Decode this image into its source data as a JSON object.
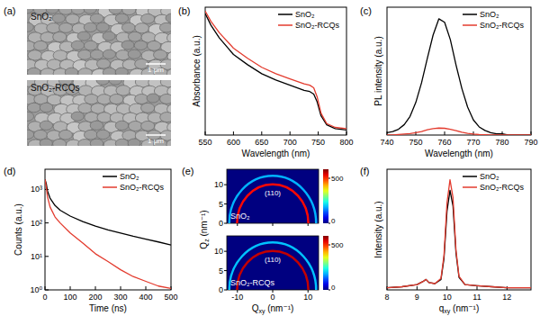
{
  "chart_data": [
    {
      "type": "image",
      "title": "(a)",
      "images": [
        {
          "label": "SnO₂",
          "scale_bar": "1 μm"
        },
        {
          "label": "SnO₂-RCQs",
          "scale_bar": "1 μm"
        }
      ]
    },
    {
      "type": "line",
      "title": "(b)",
      "x_label": "Wavelength (nm)",
      "y_label": "Absorbance (a.u.)",
      "x": [
        550,
        560,
        575,
        600,
        625,
        650,
        675,
        700,
        725,
        735,
        742,
        748,
        755,
        765,
        780,
        800
      ],
      "xlim": [
        550,
        800
      ],
      "xticks": [
        550,
        600,
        650,
        700,
        750,
        800
      ],
      "ylim": [
        0,
        1
      ],
      "tick_labels": "x",
      "legend": "upper right",
      "series": [
        {
          "name": "SnO₂",
          "color": "#000000",
          "values": [
            0.95,
            0.86,
            0.76,
            0.63,
            0.55,
            0.48,
            0.43,
            0.39,
            0.35,
            0.34,
            0.32,
            0.26,
            0.15,
            0.08,
            0.05,
            0.04
          ]
        },
        {
          "name": "SnO₂-RCQs",
          "color": "#e33b2e",
          "values": [
            0.97,
            0.89,
            0.8,
            0.68,
            0.6,
            0.53,
            0.48,
            0.44,
            0.4,
            0.39,
            0.37,
            0.3,
            0.17,
            0.09,
            0.06,
            0.05
          ]
        }
      ]
    },
    {
      "type": "line",
      "title": "(c)",
      "x_label": "Wavelength (nm)",
      "y_label": "PL intensity (a.u.)",
      "x": [
        740,
        742,
        744,
        746,
        748,
        750,
        752,
        754,
        756,
        758,
        760,
        762,
        764,
        766,
        768,
        770,
        772,
        774,
        776,
        778,
        780,
        782,
        784,
        786,
        788,
        790
      ],
      "xlim": [
        740,
        790
      ],
      "xticks": [
        740,
        750,
        760,
        770,
        780,
        790
      ],
      "ylim": [
        0,
        1.1
      ],
      "tick_labels": "x",
      "legend": "upper right",
      "series": [
        {
          "name": "SnO₂",
          "color": "#000000",
          "values": [
            0.02,
            0.03,
            0.05,
            0.09,
            0.16,
            0.28,
            0.45,
            0.66,
            0.86,
            1.0,
            0.97,
            0.82,
            0.6,
            0.4,
            0.24,
            0.13,
            0.07,
            0.04,
            0.02,
            0.01,
            0.01,
            0.0,
            0.0,
            0.0,
            0.0,
            0.0
          ]
        },
        {
          "name": "SnO₂-RCQs",
          "color": "#e33b2e",
          "values": [
            0,
            0,
            0.005,
            0.008,
            0.012,
            0.02,
            0.03,
            0.045,
            0.055,
            0.06,
            0.058,
            0.05,
            0.037,
            0.025,
            0.015,
            0.008,
            0.004,
            0.002,
            0.001,
            0,
            0,
            0,
            0,
            0,
            0,
            0
          ]
        }
      ]
    },
    {
      "type": "line",
      "title": "(d)",
      "x_label": "Time (ns)",
      "y_label": "Counts (a.u.)",
      "x": [
        0,
        5,
        10,
        20,
        40,
        60,
        100,
        150,
        200,
        250,
        300,
        350,
        400,
        450,
        500
      ],
      "xlim": [
        0,
        500
      ],
      "xticks": [
        0,
        100,
        200,
        300,
        400,
        500
      ],
      "ylim": [
        1,
        4000
      ],
      "log": "y",
      "yticks": [
        {
          "value": 1,
          "label": "10⁰"
        },
        {
          "value": 10,
          "label": "10¹"
        },
        {
          "value": 100,
          "label": "10²"
        },
        {
          "value": 1000,
          "label": "10³"
        }
      ],
      "legend": "upper right",
      "series": [
        {
          "name": "SnO₂",
          "color": "#000000",
          "values": [
            2000,
            1500,
            900,
            550,
            330,
            240,
            160,
            110,
            80,
            62,
            50,
            40,
            33,
            27,
            22
          ]
        },
        {
          "name": "SnO₂-RCQs",
          "color": "#e33b2e",
          "values": [
            2000,
            1200,
            600,
            300,
            150,
            100,
            50,
            25,
            12,
            7,
            4,
            2.5,
            1.8,
            1.3,
            1.1
          ]
        }
      ]
    },
    {
      "type": "heatmap",
      "title": "(e)",
      "y_label": "Qz (nm⁻¹)",
      "xlim": [
        -13,
        13
      ],
      "xticks": [
        -10,
        0,
        10
      ],
      "ylim": [
        0,
        14
      ],
      "yticks": [
        0,
        5,
        10
      ],
      "tick_labels": "y",
      "annotations": [
        "SnO₂",
        "(110)"
      ],
      "rings": [
        {
          "q": 10.1,
          "intensity": 520
        },
        {
          "q": 12.3,
          "intensity": 180
        }
      ],
      "colorbar": {
        "range": [
          0,
          600
        ],
        "ticks": [
          0,
          500
        ]
      }
    },
    {
      "type": "heatmap",
      "x_label": "Qxy (nm⁻¹)",
      "xlim": [
        -13,
        13
      ],
      "xticks": [
        -10,
        0,
        10
      ],
      "ylim": [
        0,
        14
      ],
      "yticks": [
        0,
        5,
        10
      ],
      "tick_labels": true,
      "annotations": [
        "SnO₂-RCQs",
        "(110)"
      ],
      "rings": [
        {
          "q": 10.1,
          "intensity": 560
        },
        {
          "q": 12.3,
          "intensity": 190
        }
      ],
      "colorbar": {
        "range": [
          0,
          600
        ],
        "ticks": [
          0,
          500
        ]
      }
    },
    {
      "type": "line",
      "title": "(f)",
      "x_label": "qxy (nm⁻¹)",
      "y_label": "Intensity (a.u.)",
      "x": [
        8.0,
        8.5,
        9.0,
        9.2,
        9.3,
        9.4,
        9.6,
        9.8,
        9.9,
        10.0,
        10.1,
        10.2,
        10.3,
        10.4,
        10.6,
        11.0,
        11.5,
        12.0,
        12.5,
        12.8
      ],
      "xlim": [
        8,
        12.8
      ],
      "xticks": [
        8,
        9,
        10,
        11,
        12
      ],
      "ylim": [
        0,
        1.15
      ],
      "tick_labels": "x",
      "legend": "upper right",
      "series": [
        {
          "name": "SnO₂",
          "color": "#000000",
          "values": [
            0.02,
            0.03,
            0.05,
            0.08,
            0.1,
            0.07,
            0.06,
            0.1,
            0.3,
            0.75,
            0.95,
            0.8,
            0.35,
            0.12,
            0.05,
            0.04,
            0.03,
            0.02,
            0.02,
            0.02
          ]
        },
        {
          "name": "SnO₂-RCQs",
          "color": "#e33b2e",
          "values": [
            0.02,
            0.03,
            0.05,
            0.08,
            0.1,
            0.07,
            0.06,
            0.11,
            0.33,
            0.83,
            1.05,
            0.88,
            0.38,
            0.13,
            0.05,
            0.04,
            0.03,
            0.02,
            0.02,
            0.02
          ]
        }
      ]
    }
  ]
}
